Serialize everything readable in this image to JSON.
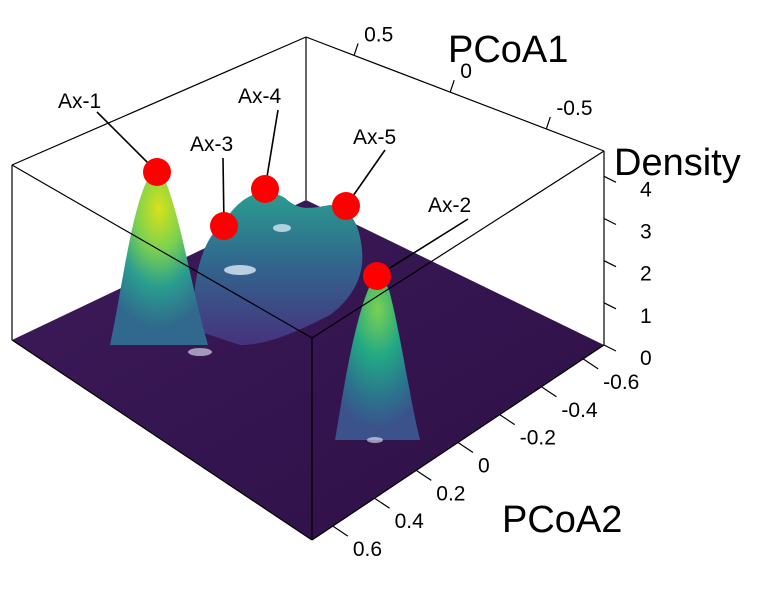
{
  "chart_data": {
    "type": "surface3d",
    "title": "",
    "axes": {
      "x": {
        "label": "PCoA1",
        "ticks": [
          "0.5",
          "0",
          "-0.5"
        ],
        "values": [
          0.5,
          0,
          -0.5
        ]
      },
      "y": {
        "label": "PCoA2",
        "ticks": [
          "-0.6",
          "-0.4",
          "-0.2",
          "0",
          "0.2",
          "0.4",
          "0.6"
        ],
        "values": [
          -0.6,
          -0.4,
          -0.2,
          0,
          0.2,
          0.4,
          0.6
        ]
      },
      "z": {
        "label": "Density",
        "ticks": [
          "0",
          "1",
          "2",
          "3",
          "4"
        ],
        "values": [
          0,
          1,
          2,
          3,
          4
        ],
        "range": [
          0,
          4.6
        ]
      }
    },
    "colormap": "viridis",
    "peaks": [
      {
        "label": "Ax-1",
        "density": 4.3
      },
      {
        "label": "Ax-2",
        "density": 2.8
      },
      {
        "label": "Ax-3",
        "density": 2.6
      },
      {
        "label": "Ax-4",
        "density": 2.9
      },
      {
        "label": "Ax-5",
        "density": 2.6
      }
    ],
    "marker_color": "#ff0000",
    "grid": false
  }
}
